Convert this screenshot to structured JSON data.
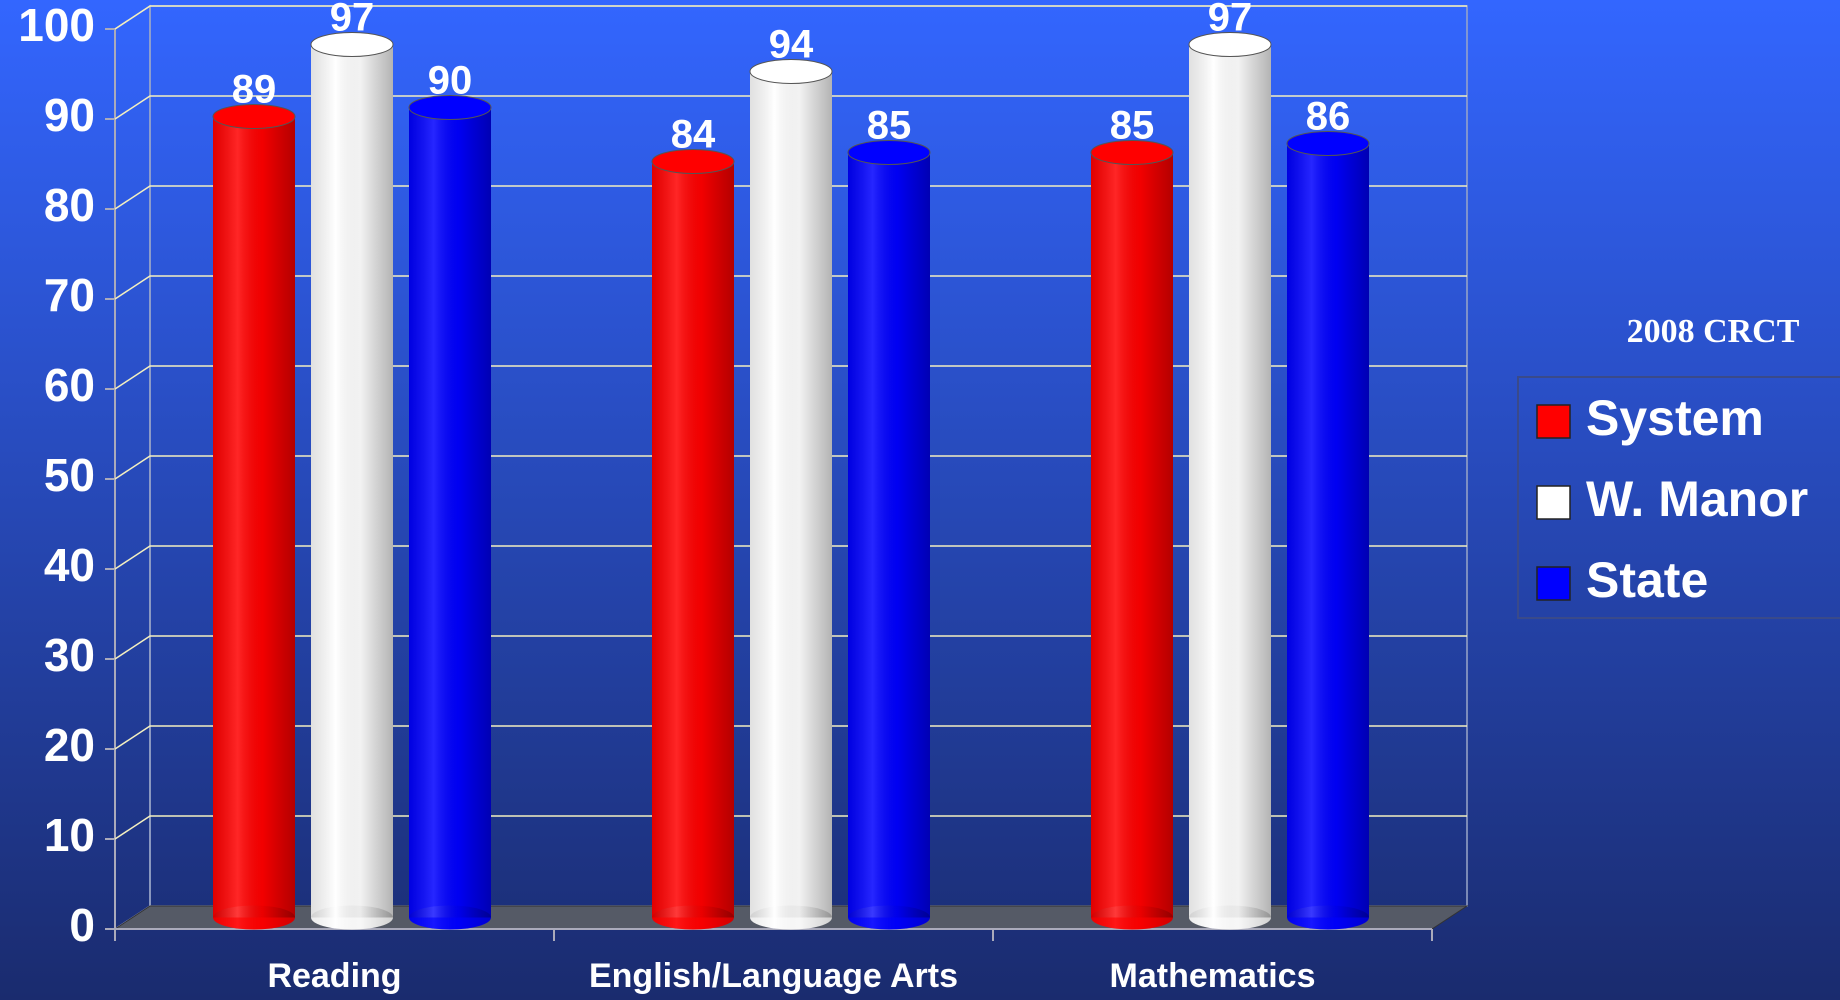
{
  "chart_data": {
    "type": "bar",
    "legend_title": "2008 CRCT",
    "categories": [
      "Reading",
      "English/Language Arts",
      "Mathematics"
    ],
    "series": [
      {
        "name": "System",
        "color": "#ff0000",
        "values": [
          89,
          84,
          85
        ]
      },
      {
        "name": "W. Manor",
        "color": "#ffffff",
        "values": [
          97,
          94,
          97
        ]
      },
      {
        "name": "State",
        "color": "#0000ff",
        "values": [
          90,
          85,
          86
        ]
      }
    ],
    "ylim": [
      0,
      100
    ],
    "yticks": [
      0,
      10,
      20,
      30,
      40,
      50,
      60,
      70,
      80,
      90,
      100
    ],
    "grid": true,
    "legend": "right"
  }
}
